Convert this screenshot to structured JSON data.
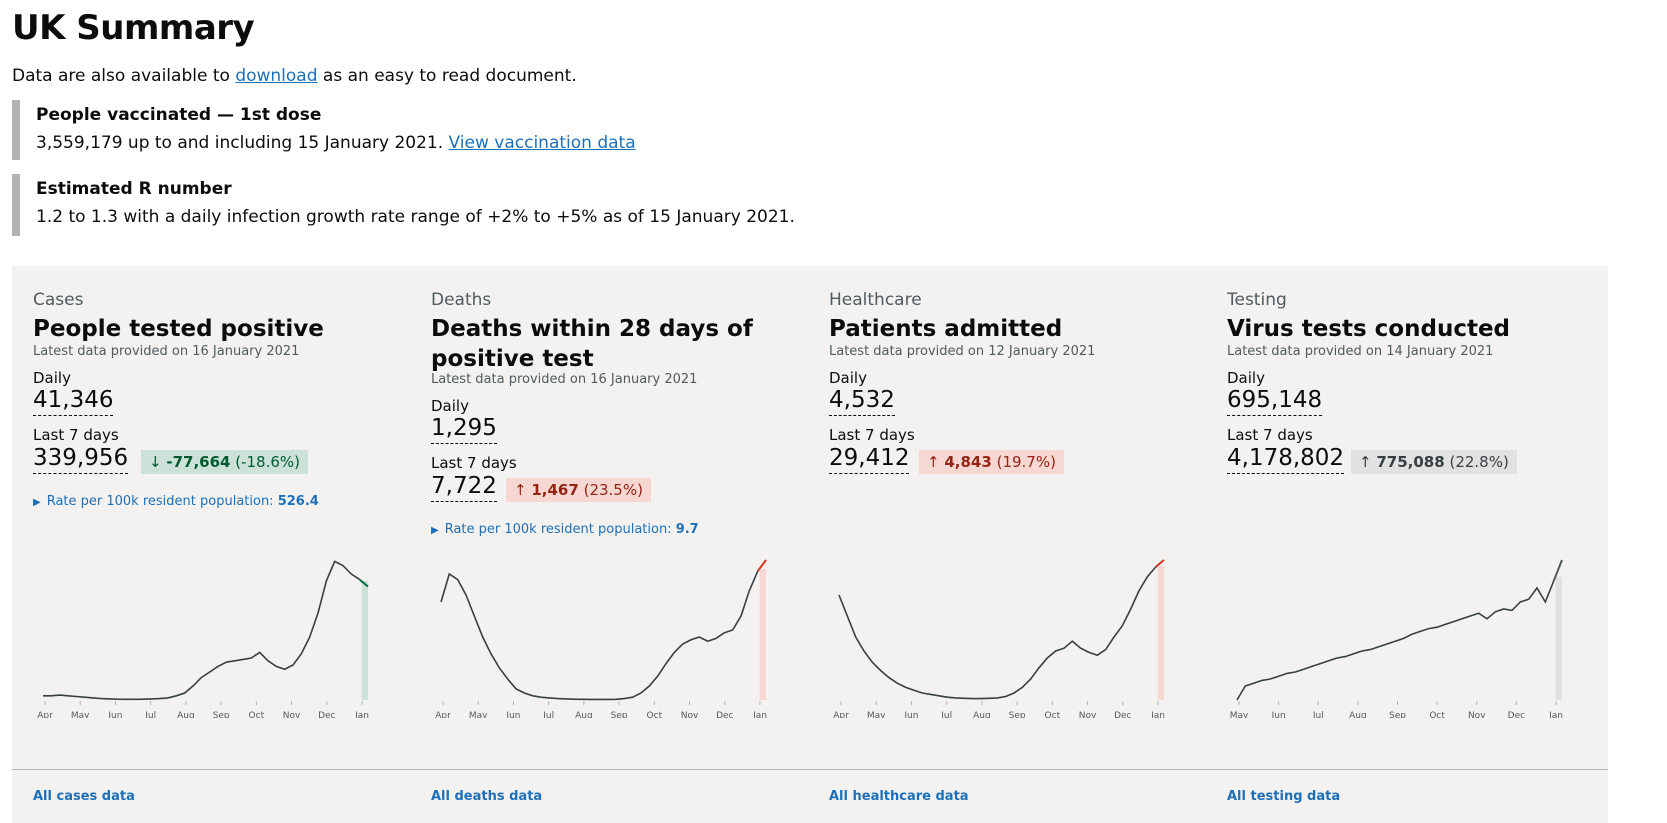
{
  "page": {
    "title": "UK Summary",
    "intro_before": "Data are also available to ",
    "intro_link": "download",
    "intro_after": " as an easy to read document."
  },
  "insets": {
    "vaccination": {
      "title": "People vaccinated — 1st dose",
      "body": "3,559,179 up to and including 15 January 2021. ",
      "link": "View vaccination data"
    },
    "r_number": {
      "title": "Estimated R number",
      "body": "1.2 to 1.3 with a daily infection growth rate range of +2% to +5% as of 15 January 2021."
    }
  },
  "colors": {
    "down": "#00703c",
    "up": "#d4351c",
    "neutral": "#505a5f",
    "line": "#383f43",
    "link": "#1d70b8"
  },
  "cards": [
    {
      "category": "Cases",
      "heading": "People tested positive",
      "latest": "Latest data provided on 16 January 2021",
      "daily_label": "Daily",
      "daily_value": "41,346",
      "week_label": "Last 7 days",
      "week_value": "339,956",
      "change_arrow": "↓",
      "change_value": "-77,664",
      "change_pct": "(-18.6%)",
      "change_dir": "down",
      "rate_label": "Rate per 100k resident population: ",
      "rate_value": "526.4",
      "footer": "All cases data",
      "ticks": [
        "Apr",
        "May",
        "Jun",
        "Jul",
        "Aug",
        "Sep",
        "Oct",
        "Nov",
        "Dec",
        "Jan"
      ],
      "series": [
        0.03,
        0.03,
        0.035,
        0.03,
        0.025,
        0.02,
        0.015,
        0.01,
        0.008,
        0.006,
        0.005,
        0.005,
        0.006,
        0.008,
        0.01,
        0.015,
        0.03,
        0.05,
        0.1,
        0.16,
        0.2,
        0.24,
        0.27,
        0.28,
        0.29,
        0.3,
        0.34,
        0.28,
        0.24,
        0.22,
        0.25,
        0.33,
        0.45,
        0.62,
        0.85,
        0.99,
        0.96,
        0.9,
        0.86,
        0.81
      ]
    },
    {
      "category": "Deaths",
      "heading": "Deaths within 28 days of positive test",
      "latest": "Latest data provided on 16 January 2021",
      "daily_label": "Daily",
      "daily_value": "1,295",
      "week_label": "Last 7 days",
      "week_value": "7,722",
      "change_arrow": "↑",
      "change_value": "1,467",
      "change_pct": "(23.5%)",
      "change_dir": "up",
      "rate_label": "Rate per 100k resident population: ",
      "rate_value": "9.7",
      "footer": "All deaths data",
      "ticks": [
        "Apr",
        "May",
        "Jun",
        "Jul",
        "Aug",
        "Sep",
        "Oct",
        "Nov",
        "Dec",
        "Jan"
      ],
      "series": [
        0.7,
        0.9,
        0.86,
        0.75,
        0.6,
        0.45,
        0.33,
        0.23,
        0.15,
        0.08,
        0.05,
        0.03,
        0.02,
        0.015,
        0.01,
        0.008,
        0.006,
        0.005,
        0.004,
        0.004,
        0.004,
        0.005,
        0.01,
        0.02,
        0.05,
        0.1,
        0.17,
        0.26,
        0.34,
        0.4,
        0.43,
        0.45,
        0.42,
        0.44,
        0.48,
        0.5,
        0.6,
        0.78,
        0.92,
        1.0
      ]
    },
    {
      "category": "Healthcare",
      "heading": "Patients admitted",
      "latest": "Latest data provided on 12 January 2021",
      "daily_label": "Daily",
      "daily_value": "4,532",
      "week_label": "Last 7 days",
      "week_value": "29,412",
      "change_arrow": "↑",
      "change_value": "4,843",
      "change_pct": "(19.7%)",
      "change_dir": "up",
      "footer": "All healthcare data",
      "ticks": [
        "Apr",
        "May",
        "Jun",
        "Jul",
        "Aug",
        "Sep",
        "Oct",
        "Nov",
        "Dec",
        "Jan"
      ],
      "series": [
        0.75,
        0.6,
        0.45,
        0.35,
        0.27,
        0.21,
        0.16,
        0.12,
        0.09,
        0.07,
        0.05,
        0.04,
        0.03,
        0.02,
        0.015,
        0.012,
        0.01,
        0.01,
        0.012,
        0.015,
        0.025,
        0.05,
        0.09,
        0.15,
        0.23,
        0.3,
        0.35,
        0.37,
        0.42,
        0.37,
        0.34,
        0.32,
        0.36,
        0.45,
        0.53,
        0.65,
        0.78,
        0.88,
        0.95,
        1.0
      ]
    },
    {
      "category": "Testing",
      "heading": "Virus tests conducted",
      "latest": "Latest data provided on 14 January 2021",
      "daily_label": "Daily",
      "daily_value": "695,148",
      "week_label": "Last 7 days",
      "week_value": "4,178,802",
      "change_arrow": "↑",
      "change_value": "775,088",
      "change_pct": "(22.8%)",
      "change_dir": "neutral",
      "footer": "All testing data",
      "ticks": [
        "May",
        "Jun",
        "Jul",
        "Aug",
        "Sep",
        "Oct",
        "Nov",
        "Dec",
        "Jan"
      ],
      "series": [
        0.0,
        0.1,
        0.12,
        0.14,
        0.15,
        0.17,
        0.19,
        0.2,
        0.22,
        0.24,
        0.26,
        0.28,
        0.3,
        0.31,
        0.33,
        0.35,
        0.36,
        0.38,
        0.4,
        0.42,
        0.44,
        0.47,
        0.49,
        0.51,
        0.52,
        0.54,
        0.56,
        0.58,
        0.6,
        0.62,
        0.58,
        0.63,
        0.65,
        0.64,
        0.7,
        0.72,
        0.8,
        0.7,
        0.85,
        1.0
      ]
    }
  ]
}
